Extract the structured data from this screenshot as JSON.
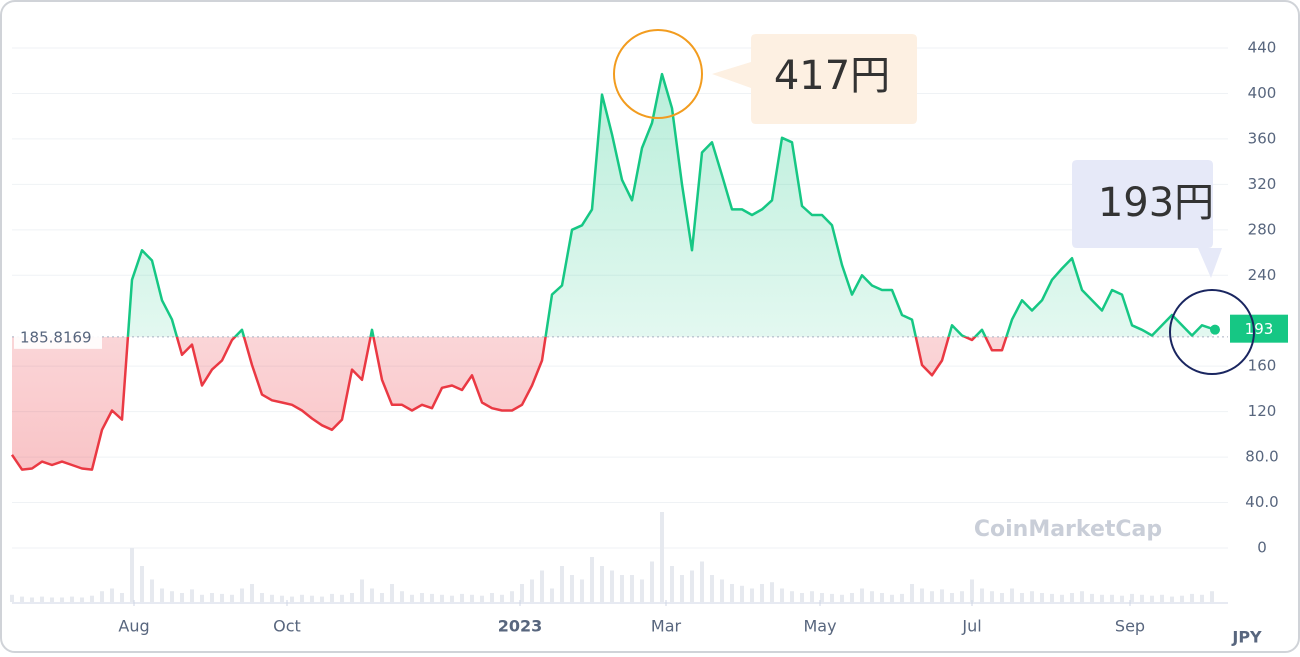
{
  "chart_data": {
    "type": "line",
    "values": [
      82,
      69,
      70,
      76,
      73,
      76,
      73,
      70,
      69,
      104,
      121,
      113,
      236,
      262,
      253,
      218,
      201,
      170,
      179,
      143,
      157,
      165,
      183,
      192,
      161,
      135,
      130,
      128,
      126,
      121,
      114,
      108,
      104,
      113,
      157,
      148,
      192,
      148,
      126,
      126,
      121,
      126,
      123,
      141,
      143,
      139,
      152,
      128,
      123,
      121,
      121,
      126,
      143,
      165,
      223,
      231,
      280,
      284,
      298,
      399,
      364,
      324,
      306,
      352,
      374,
      417,
      387,
      320,
      262,
      348,
      357,
      328,
      298,
      298,
      293,
      298,
      306,
      361,
      357,
      301,
      293,
      293,
      284,
      249,
      223,
      240,
      231,
      227,
      227,
      205,
      201,
      161,
      152,
      165,
      196,
      187,
      183,
      192,
      174,
      174,
      201,
      218,
      209,
      218,
      236,
      246,
      255,
      227,
      218,
      209,
      227,
      223,
      196,
      192,
      187,
      196,
      205,
      196,
      187,
      196,
      193
    ],
    "volume": [
      8,
      6,
      5,
      6,
      5,
      5,
      6,
      5,
      7,
      12,
      15,
      10,
      60,
      40,
      25,
      15,
      12,
      10,
      14,
      8,
      10,
      9,
      8,
      15,
      20,
      10,
      8,
      7,
      6,
      8,
      7,
      6,
      9,
      8,
      10,
      25,
      15,
      10,
      20,
      12,
      8,
      10,
      9,
      8,
      7,
      9,
      8,
      7,
      10,
      8,
      12,
      20,
      25,
      35,
      15,
      40,
      30,
      25,
      50,
      40,
      35,
      30,
      30,
      25,
      45,
      100,
      40,
      30,
      35,
      45,
      30,
      25,
      20,
      18,
      15,
      20,
      22,
      15,
      12,
      10,
      12,
      10,
      9,
      8,
      10,
      15,
      12,
      10,
      8,
      9,
      20,
      15,
      12,
      14,
      10,
      12,
      25,
      15,
      12,
      10,
      15,
      10,
      12,
      10,
      9,
      8,
      10,
      12,
      9,
      8,
      8,
      7,
      9,
      8,
      7,
      8,
      6,
      7,
      9,
      8,
      12
    ],
    "volume_lim": [
      0,
      100
    ],
    "baseline": 185.8169,
    "up_color": "#16c784",
    "down_color": "#ea3943",
    "ylim": [
      0,
      440
    ],
    "yticks": [
      0,
      {
        "value": 40,
        "label": "40.0"
      },
      {
        "value": 80,
        "label": "80.0"
      },
      120,
      160,
      240,
      280,
      320,
      360,
      400,
      440
    ],
    "xlim": [
      0,
      120
    ],
    "xticks": [
      {
        "value": 12.2,
        "label": "Aug"
      },
      {
        "value": 27.5,
        "label": "Oct"
      },
      {
        "value": 50.8,
        "label": "2023"
      },
      {
        "value": 65.4,
        "label": "Mar"
      },
      {
        "value": 80.8,
        "label": "May"
      },
      {
        "value": 96,
        "label": "Jul"
      },
      {
        "value": 111.8,
        "label": "Sep"
      }
    ],
    "grid": true,
    "unit": "JPY",
    "watermark": "CoinMarketCap",
    "annotations": [
      {
        "text": "417円"
      },
      {
        "text": "193円"
      }
    ]
  }
}
